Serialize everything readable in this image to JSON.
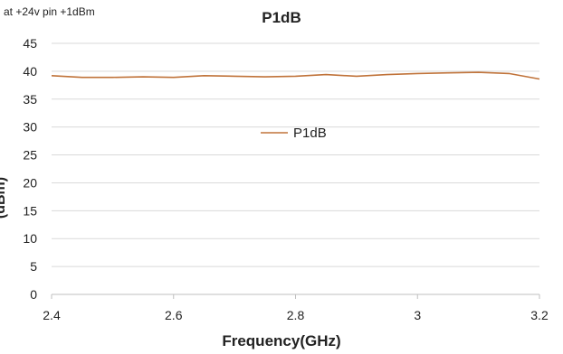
{
  "note": "at +24v pin +1dBm",
  "colors": {
    "series": "#c0733a",
    "grid": "#d9d9d9",
    "axis": "#bfbfbf"
  },
  "chart_data": {
    "type": "line",
    "title": "P1dB",
    "xlabel": "Frequency(GHz)",
    "ylabel": "(dBm)",
    "xlim": [
      2.4,
      3.2
    ],
    "ylim": [
      0,
      45
    ],
    "xticks": [
      "2.4",
      "2.6",
      "2.8",
      "3",
      "3.2"
    ],
    "yticks": [
      "0",
      "5",
      "10",
      "15",
      "20",
      "25",
      "30",
      "35",
      "40",
      "45"
    ],
    "grid": true,
    "legend_position": "center",
    "series": [
      {
        "name": "P1dB",
        "x": [
          2.4,
          2.45,
          2.5,
          2.55,
          2.6,
          2.65,
          2.7,
          2.75,
          2.8,
          2.85,
          2.9,
          2.95,
          3.0,
          3.05,
          3.1,
          3.15,
          3.2
        ],
        "y": [
          39.2,
          38.9,
          38.9,
          39.0,
          38.9,
          39.2,
          39.1,
          39.0,
          39.1,
          39.4,
          39.1,
          39.4,
          39.6,
          39.7,
          39.8,
          39.6,
          38.6
        ]
      }
    ]
  }
}
